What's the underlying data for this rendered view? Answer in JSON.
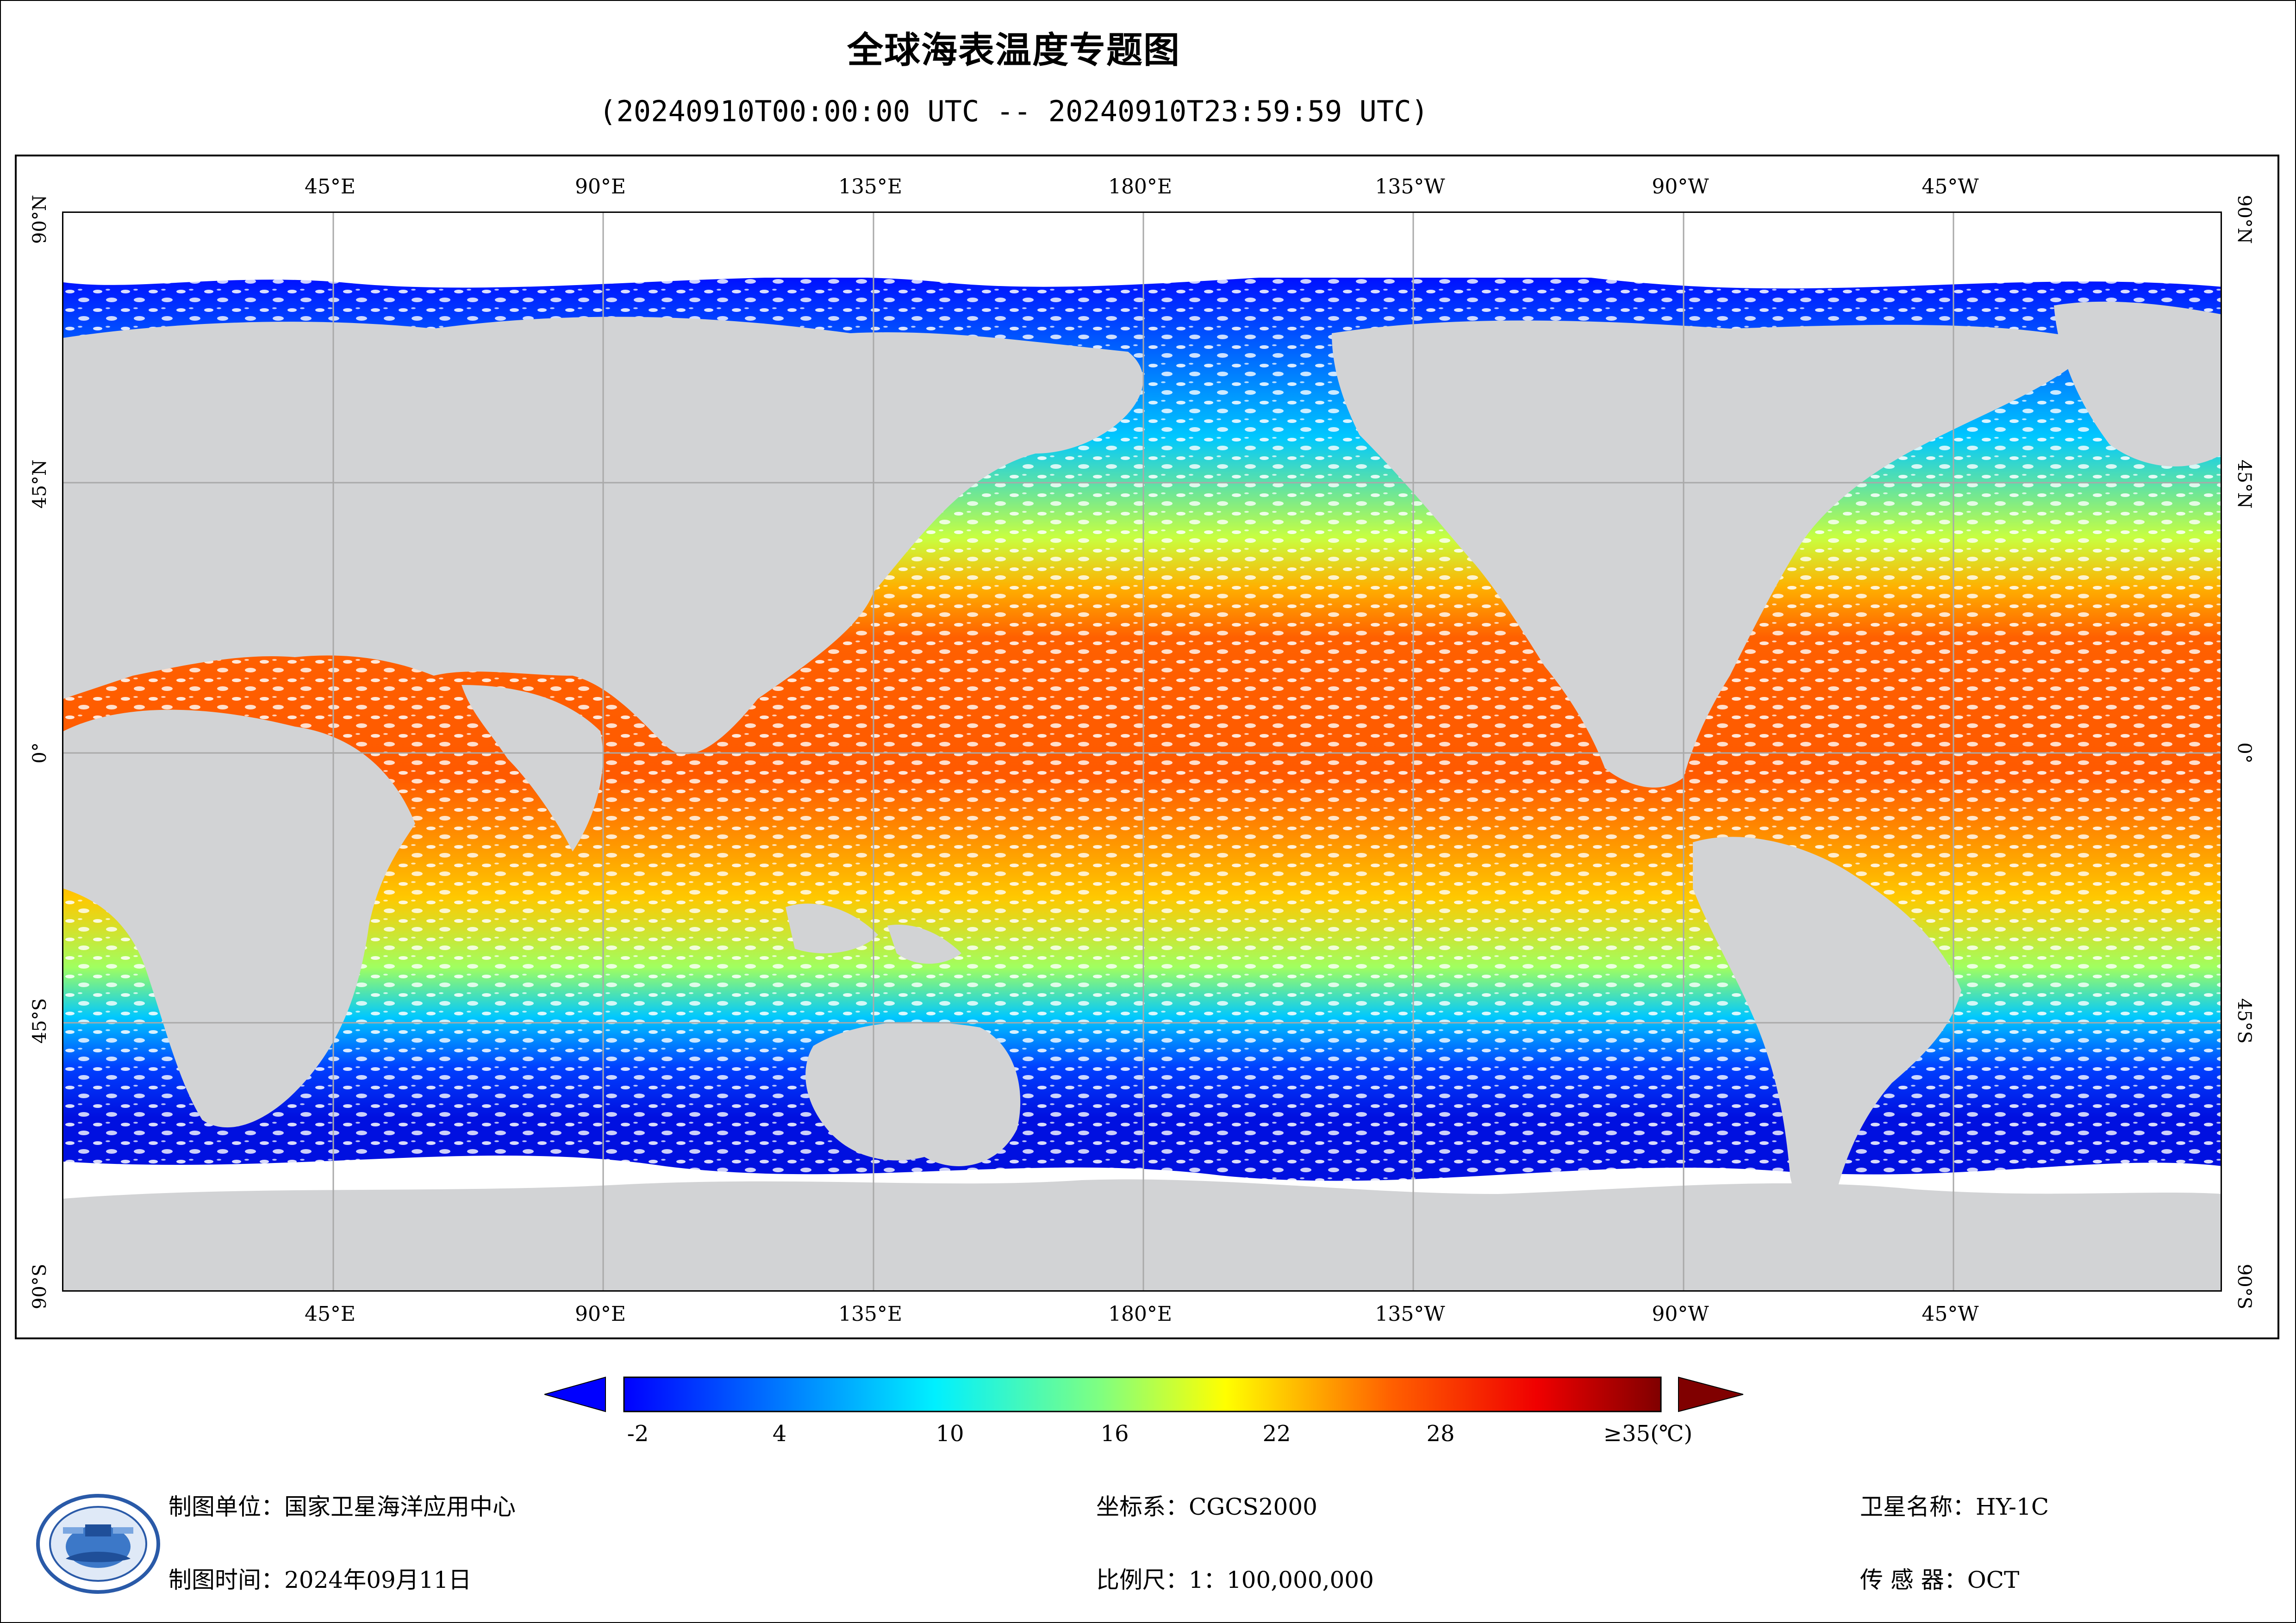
{
  "title": "全球海表温度专题图",
  "subtitle": "(20240910T00:00:00 UTC -- 20240910T23:59:59 UTC)",
  "map": {
    "projection": "equirectangular, centered 180°",
    "colors": {
      "land": "#d2d3d5",
      "ice_or_cloud": "#ffffff",
      "graticule": "#a9a9a9"
    },
    "longitude_labels": [
      "45°E",
      "90°E",
      "135°E",
      "180°E",
      "135°W",
      "90°W",
      "45°W"
    ],
    "latitude_labels": [
      "90°N",
      "45°N",
      "0°",
      "45°S",
      "90°S"
    ]
  },
  "colorbar": {
    "ticks": [
      "-2",
      "4",
      "10",
      "16",
      "22",
      "28",
      "≥35(℃)"
    ],
    "min": -2,
    "max": 35,
    "colors": [
      "#0000ff",
      "#00a0ff",
      "#00ffff",
      "#80ff80",
      "#ffff00",
      "#ff8000",
      "#ff0000",
      "#800000"
    ]
  },
  "footer": {
    "unit": "制图单位：国家卫星海洋应用中心",
    "date": "制图时间：2024年09月11日",
    "crs": "坐标系：CGCS2000",
    "scale": "比例尺：1：100,000,000",
    "satellite": "卫星名称：HY-1C",
    "sensor": "传 感 器：OCT"
  }
}
